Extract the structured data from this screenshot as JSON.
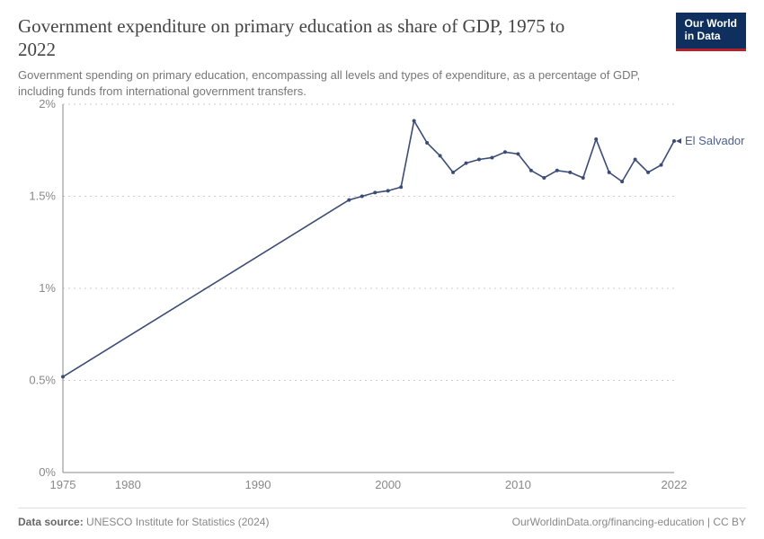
{
  "header": {
    "title": "Government expenditure on primary education as share of GDP, 1975 to 2022",
    "subtitle": "Government spending on primary education, encompassing all levels and types of expenditure, as a percentage of GDP, including funds from international government transfers.",
    "logo_line1": "Our World",
    "logo_line2": "in Data"
  },
  "chart": {
    "type": "line",
    "xlim": [
      1975,
      2022
    ],
    "ylim": [
      0,
      2
    ],
    "xticks": [
      1975,
      1980,
      1990,
      2000,
      2010,
      2022
    ],
    "yticks": [
      {
        "v": 0,
        "label": "0%"
      },
      {
        "v": 0.5,
        "label": "0.5%"
      },
      {
        "v": 1,
        "label": "1%"
      },
      {
        "v": 1.5,
        "label": "1.5%"
      },
      {
        "v": 2,
        "label": "2%"
      }
    ],
    "background_color": "#ffffff",
    "grid_color": "#cccccc",
    "axis_color": "#888888",
    "tick_font_size": 13,
    "line_width": 1.6,
    "marker_radius": 2,
    "series": [
      {
        "name": "El Salvador",
        "color": "#3b4c7a",
        "label_color": "#4b5f94",
        "points": [
          [
            1975,
            0.52
          ],
          [
            1997,
            1.48
          ],
          [
            1998,
            1.5
          ],
          [
            1999,
            1.52
          ],
          [
            2000,
            1.53
          ],
          [
            2001,
            1.55
          ],
          [
            2002,
            1.91
          ],
          [
            2003,
            1.79
          ],
          [
            2004,
            1.72
          ],
          [
            2005,
            1.63
          ],
          [
            2006,
            1.68
          ],
          [
            2007,
            1.7
          ],
          [
            2008,
            1.71
          ],
          [
            2009,
            1.74
          ],
          [
            2010,
            1.73
          ],
          [
            2011,
            1.64
          ],
          [
            2012,
            1.6
          ],
          [
            2013,
            1.64
          ],
          [
            2014,
            1.63
          ],
          [
            2015,
            1.6
          ],
          [
            2016,
            1.81
          ],
          [
            2017,
            1.63
          ],
          [
            2018,
            1.58
          ],
          [
            2019,
            1.7
          ],
          [
            2020,
            1.63
          ],
          [
            2021,
            1.67
          ],
          [
            2022,
            1.8
          ]
        ]
      }
    ]
  },
  "footer": {
    "source_prefix": "Data source:",
    "source": "UNESCO Institute for Statistics (2024)",
    "attribution": "OurWorldinData.org/financing-education | CC BY"
  }
}
